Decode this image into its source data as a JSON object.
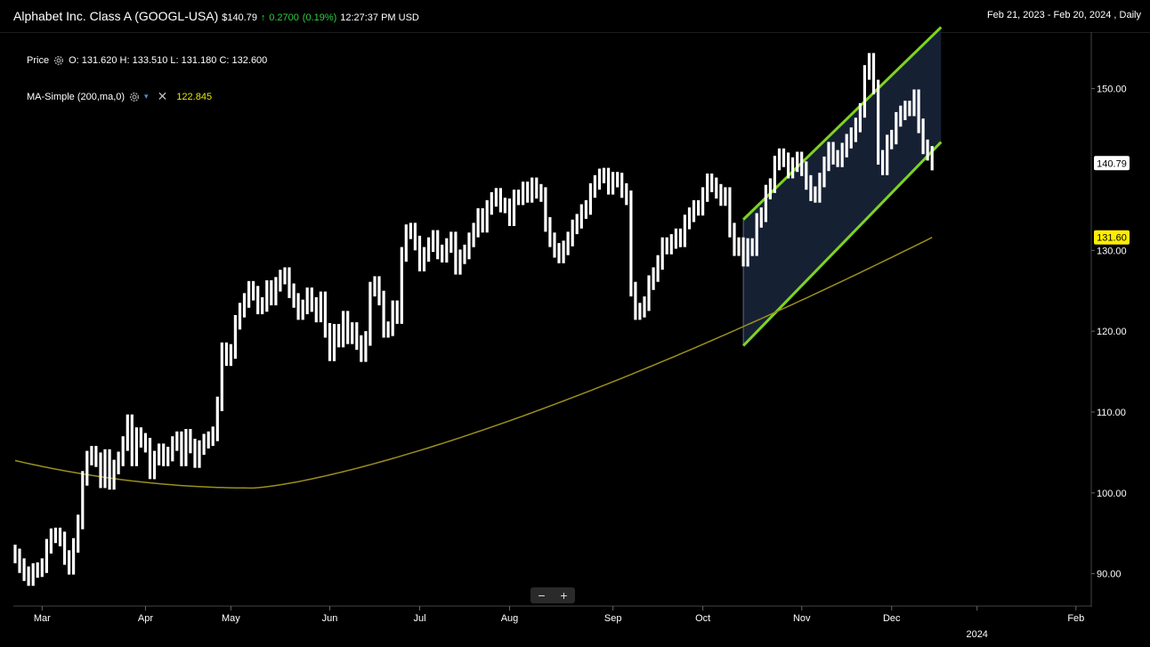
{
  "header": {
    "title": "Alphabet Inc. Class A (GOOGL-USA)",
    "price": "$140.79",
    "change_arrow": "↑",
    "change": "0.2700",
    "change_pct": "(0.19%)",
    "time": "12:27:37 PM USD",
    "range": "Feb 21, 2023 - Feb 20, 2024 , Daily"
  },
  "legend": {
    "price_label": "Price",
    "ohlc": "O: 131.620  H: 133.510  L: 131.180  C: 132.600",
    "ma_label": "MA-Simple (200,ma,0)",
    "ma_value": "122.845",
    "colors": {
      "ma": "#e6e600"
    }
  },
  "zoom": {
    "minus": "−",
    "plus": "+"
  },
  "chart_data": {
    "type": "bar",
    "subtype": "ohlc-daily",
    "ylim": [
      86,
      157
    ],
    "yticks": [
      "90.00",
      "100.00",
      "110.00",
      "120.00",
      "130.00",
      "150.00"
    ],
    "price_tags": [
      {
        "label": "140.79",
        "value": 140.79,
        "color": "#ffffff",
        "text_color": "#000000"
      },
      {
        "label": "131.60",
        "value": 131.6,
        "color": "#ffee00",
        "text_color": "#000000"
      }
    ],
    "xticks": [
      "Mar",
      "Apr",
      "May",
      "Jun",
      "Jul",
      "Aug",
      "Sep",
      "Oct",
      "Nov",
      "Dec",
      "2024",
      "Feb"
    ],
    "xtick_sub": [
      "",
      "",
      "",
      "",
      "",
      "",
      "",
      "",
      "",
      "",
      "2024",
      ""
    ],
    "month_start_index": [
      6,
      29,
      48,
      70,
      90,
      110,
      133,
      153,
      175,
      195,
      214,
      236
    ],
    "close": [
      92.2,
      91.0,
      90.0,
      89.4,
      90.4,
      90.5,
      91.0,
      93.4,
      94.7,
      94.8,
      94.3,
      92.0,
      90.8,
      93.5,
      96.4,
      101.8,
      104.3,
      104.9,
      104.1,
      101.5,
      104.5,
      101.3,
      103.2,
      104.2,
      106.1,
      108.8,
      104.2,
      107.2,
      106.5,
      105.9,
      102.6,
      104.3,
      105.2,
      104.2,
      104.8,
      106.1,
      106.7,
      104.2,
      107.0,
      105.8,
      104.0,
      105.6,
      106.4,
      106.7,
      107.3,
      111.0,
      117.7,
      116.6,
      117.5,
      121.1,
      122.6,
      123.8,
      125.3,
      124.7,
      123.0,
      123.3,
      125.4,
      124.1,
      125.8,
      126.7,
      127.0,
      125.0,
      123.8,
      122.3,
      123.0,
      124.5,
      123.3,
      122.0,
      124.0,
      120.1,
      117.2,
      120.0,
      118.9,
      121.6,
      119.3,
      120.2,
      118.6,
      117.1,
      119.1,
      125.2,
      125.9,
      124.1,
      120.1,
      120.3,
      122.9,
      121.8,
      129.5,
      132.3,
      132.5,
      130.9,
      128.3,
      129.5,
      130.7,
      131.6,
      129.8,
      129.4,
      130.6,
      131.4,
      127.9,
      129.2,
      129.8,
      131.3,
      132.5,
      134.3,
      133.1,
      135.3,
      136.3,
      136.8,
      135.6,
      135.5,
      133.9,
      136.6,
      136.5,
      137.6,
      136.8,
      138.1,
      137.3,
      136.9,
      133.2,
      131.3,
      130.0,
      129.3,
      130.3,
      131.4,
      132.9,
      133.6,
      134.8,
      135.3,
      137.4,
      138.4,
      139.2,
      139.3,
      137.8,
      138.8,
      138.7,
      137.4,
      136.5,
      125.2,
      122.3,
      122.6,
      123.4,
      126.0,
      127.0,
      128.5,
      130.7,
      130.4,
      131.1,
      131.8,
      131.3,
      133.5,
      134.4,
      135.3,
      135.2,
      136.9,
      138.6,
      138.1,
      137.3,
      136.4,
      136.9,
      132.5,
      130.2,
      130.7,
      128.9,
      130.6,
      130.2,
      133.7,
      134.4,
      137.2,
      138.0,
      140.8,
      141.7,
      141.2,
      139.8,
      140.6,
      141.3,
      140.1,
      138.4,
      137.0,
      136.8,
      138.7,
      140.7,
      142.5,
      141.5,
      141.2,
      142.4,
      143.5,
      144.3,
      145.5,
      147.3,
      152.0,
      153.5,
      150.2,
      141.5,
      140.2,
      143.4,
      144.0,
      146.2,
      147.0,
      147.6,
      147.5,
      149.0,
      145.4,
      142.8,
      142.0,
      140.8
    ]
  }
}
